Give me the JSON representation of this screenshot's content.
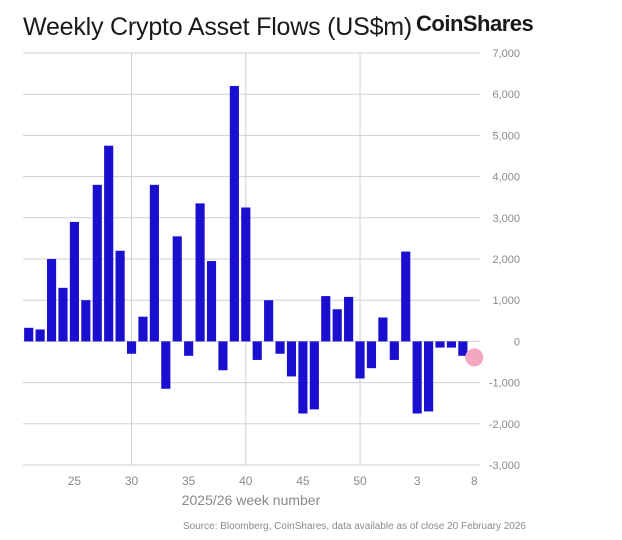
{
  "brand": "CoinShares",
  "source_note": "Source: Bloomberg, CoinShares, data available as of close 20 February 2026",
  "colors": {
    "bar": "#1a0fcf",
    "highlight": "#f4a7c3",
    "grid": "#d0d0d0",
    "text": "#1a1a1a",
    "axis_text": "#8a8a8a"
  },
  "chart_data": {
    "type": "bar",
    "title": "Weekly Crypto Asset Flows (US$m)",
    "xlabel": "2025/26 week number",
    "ylabel": "",
    "ylim": [
      -3000,
      7000
    ],
    "yticks": [
      -3000,
      -2000,
      -1000,
      0,
      1000,
      2000,
      3000,
      4000,
      5000,
      6000,
      7000
    ],
    "ytick_labels": [
      "-3,000",
      "-2,000",
      "-1,000",
      "0",
      "1,000",
      "2,000",
      "3,000",
      "4,000",
      "5,000",
      "6,000",
      "7,000"
    ],
    "categories": [
      "21",
      "22",
      "23",
      "24",
      "25",
      "26",
      "27",
      "28",
      "29",
      "30",
      "31",
      "32",
      "33",
      "34",
      "35",
      "36",
      "37",
      "38",
      "39",
      "40",
      "41",
      "42",
      "43",
      "44",
      "45",
      "46",
      "47",
      "48",
      "49",
      "50",
      "51",
      "52",
      "1",
      "2",
      "3",
      "4",
      "5",
      "6",
      "7",
      "8"
    ],
    "xtick_labels": [
      "",
      "",
      "",
      "",
      "25",
      "",
      "",
      "",
      "",
      "30",
      "",
      "",
      "",
      "",
      "35",
      "",
      "",
      "",
      "",
      "40",
      "",
      "",
      "",
      "",
      "45",
      "",
      "",
      "",
      "",
      "50",
      "",
      "",
      "",
      "",
      "3",
      "",
      "",
      "",
      "",
      "8"
    ],
    "xgrid_at": [
      "30",
      "40",
      "50"
    ],
    "values": [
      330,
      290,
      2000,
      1300,
      2900,
      1000,
      3800,
      4750,
      2200,
      -300,
      600,
      3800,
      -1150,
      2550,
      -350,
      3350,
      1950,
      -700,
      6200,
      3250,
      -450,
      1000,
      -300,
      -850,
      -1750,
      -1650,
      1100,
      780,
      1080,
      -900,
      -650,
      580,
      -450,
      2180,
      -1750,
      -1700,
      -150,
      -150,
      -350,
      0
    ],
    "highlight_category": "8",
    "grid": true
  }
}
